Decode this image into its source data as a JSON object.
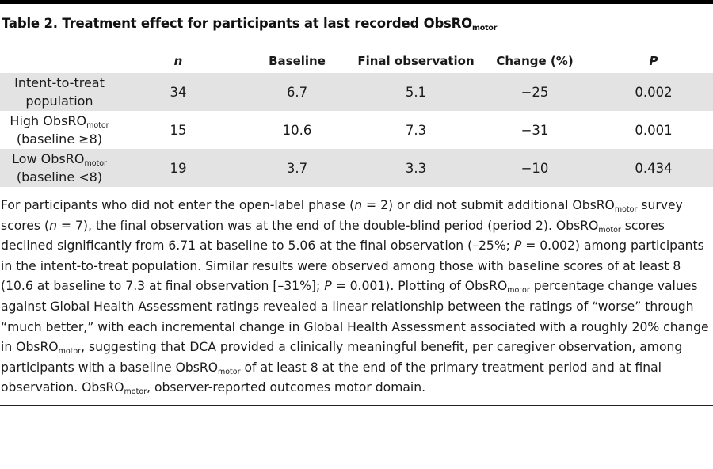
{
  "table": {
    "title_main": "Table 2. Treatment effect for participants at last recorded ObsRO",
    "title_sub": "motor",
    "headers": {
      "label": "",
      "n": "n",
      "baseline": "Baseline",
      "final": "Final observation",
      "change": "Change (%)",
      "p": "P"
    },
    "rows": [
      {
        "label_line1": "Intent-to-treat",
        "label_line2": "population",
        "n": "34",
        "baseline": "6.7",
        "final": "5.1",
        "change": "−25",
        "p": "0.002"
      },
      {
        "label_line1": "High ObsRO",
        "label_sub": "motor",
        "label_line2": "(baseline ≥8)",
        "n": "15",
        "baseline": "10.6",
        "final": "7.3",
        "change": "−31",
        "p": "0.001"
      },
      {
        "label_line1": "Low ObsRO",
        "label_sub": "motor",
        "label_line2": "(baseline <8)",
        "n": "19",
        "baseline": "3.7",
        "final": "3.3",
        "change": "−10",
        "p": "0.434"
      }
    ]
  },
  "footnote": {
    "t01": "For participants who did not enter the open-label phase (",
    "t02": "n",
    "t03": " = 2) or did not submit additional ObsRO",
    "t04": "motor",
    "t05": " survey scores (",
    "t06": "n",
    "t07": " = 7), the final observation was at the end of the double-blind period (period 2). ObsRO",
    "t08": "motor",
    "t09": " scores declined significantly from 6.71 at baseline to 5.06 at the final observation (–25%; ",
    "t10": "P",
    "t11": " = 0.002) among participants in the intent-to-treat population. Similar results were observed among those with baseline scores of at least 8 (10.6 at baseline to 7.3 at final observation [–31%]; ",
    "t12": "P",
    "t13": " = 0.001). Plotting of ObsRO",
    "t14": "motor",
    "t15": " percentage change values against Global Health Assessment ratings revealed a linear relationship between the ratings of “worse” through “much better,” with each incremental change in Global Health Assessment associated with a roughly 20% change in ObsRO",
    "t16": "motor",
    "t17": ", suggesting that DCA provided a clinically meaningful benefit, per caregiver observation, among participants with a baseline ObsRO",
    "t18": "motor",
    "t19": " of at least 8 at the end of the primary treatment period and at final observation. ObsRO",
    "t20": "motor",
    "t21": ", observer-reported outcomes motor domain."
  }
}
